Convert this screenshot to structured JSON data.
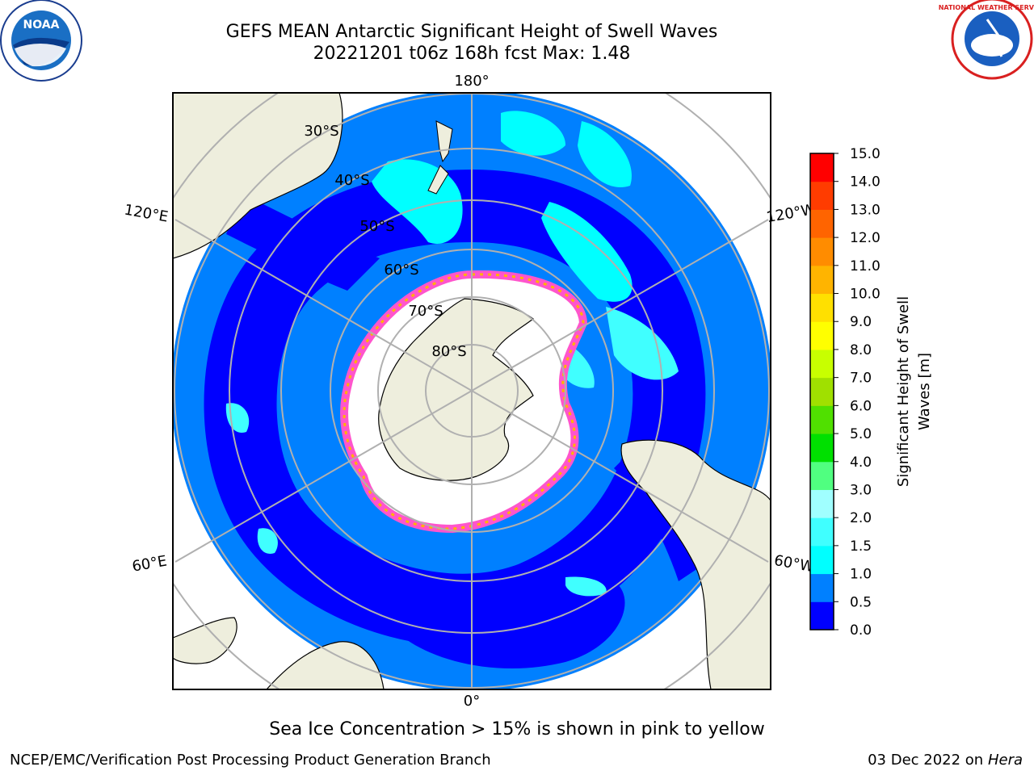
{
  "header": {
    "title_line1": "GEFS MEAN Antarctic Significant Height of Swell Waves",
    "title_line2": "20221201 t06z 168h fcst   Max: 1.48"
  },
  "logos": {
    "left": "NOAA",
    "right": "NATIONAL WEATHER SERVICE"
  },
  "map": {
    "longitude_labels": [
      "180°",
      "120°E",
      "120°W",
      "60°E",
      "60°W",
      "0°"
    ],
    "latitude_labels": [
      "30°S",
      "40°S",
      "50°S",
      "60°S",
      "70°S",
      "80°S"
    ]
  },
  "colorbar": {
    "label_line1": "Significant Height of Swell",
    "label_line2": "Waves [m]",
    "ticks": [
      "0.0",
      "0.5",
      "1.0",
      "1.5",
      "2.0",
      "3.0",
      "4.0",
      "5.0",
      "6.0",
      "7.0",
      "8.0",
      "9.0",
      "10.0",
      "11.0",
      "12.0",
      "13.0",
      "14.0",
      "15.0"
    ],
    "colors": [
      "#0000ff",
      "#0080ff",
      "#00ffff",
      "#40ffff",
      "#a0ffff",
      "#50ff80",
      "#00e000",
      "#50e000",
      "#a0e000",
      "#c8ff00",
      "#ffff00",
      "#ffe000",
      "#ffb400",
      "#ff8c00",
      "#ff6400",
      "#ff3c00",
      "#ff0000"
    ]
  },
  "note": "Sea Ice Concentration > 15% is shown in pink to yellow",
  "footer": {
    "left": "NCEP/EMC/Verification Post Processing Product Generation Branch",
    "right_date": "03 Dec 2022 on",
    "right_host": "Hera"
  }
}
